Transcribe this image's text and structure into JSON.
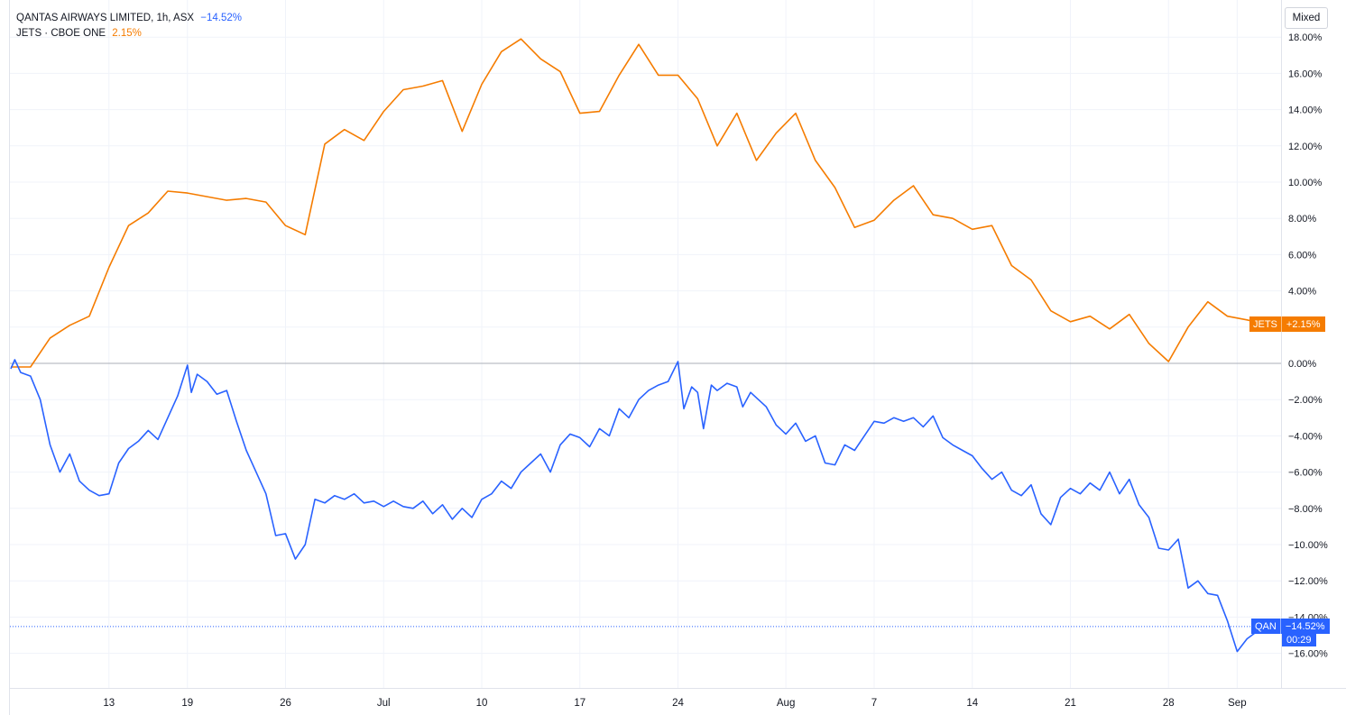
{
  "legend": {
    "qan_title": "QANTAS AIRWAYS LIMITED, 1h, ASX",
    "qan_change": "−14.52%",
    "jets_title": "JETS · CBOE ONE",
    "jets_change": "2.15%"
  },
  "toolbar": {
    "mixed_label": "Mixed"
  },
  "tags": {
    "jets_symbol": "JETS",
    "jets_value": "+2.15%",
    "qan_symbol": "QAN",
    "qan_value": "−14.52%",
    "qan_countdown": "00:29"
  },
  "colors": {
    "qan": "#2962ff",
    "jets": "#f57c00",
    "grid": "#f0f3fa",
    "axis_text": "#131722",
    "zero_line": "#9598a1"
  },
  "chart_data": {
    "type": "line",
    "ylim": [
      -17.5,
      18.5
    ],
    "y_ticks": [
      18,
      16,
      14,
      12,
      10,
      8,
      6,
      4,
      2,
      0,
      -2,
      -4,
      -6,
      -8,
      -10,
      -12,
      -14,
      -16
    ],
    "y_tick_labels": [
      "18.00%",
      "16.00%",
      "14.00%",
      "12.00%",
      "10.00%",
      "8.00%",
      "6.00%",
      "4.00%",
      "2.00%",
      "0.00%",
      "−2.00%",
      "−4.00%",
      "−6.00%",
      "−8.00%",
      "−10.00%",
      "−12.00%",
      "−14.00%",
      "−16.00%"
    ],
    "x_tick_labels": [
      {
        "label": "13",
        "t": 5
      },
      {
        "label": "19",
        "t": 9
      },
      {
        "label": "26",
        "t": 14
      },
      {
        "label": "Jul",
        "t": 19
      },
      {
        "label": "10",
        "t": 24
      },
      {
        "label": "17",
        "t": 29
      },
      {
        "label": "24",
        "t": 34
      },
      {
        "label": "Aug",
        "t": 39.5
      },
      {
        "label": "7",
        "t": 44
      },
      {
        "label": "14",
        "t": 49
      },
      {
        "label": "21",
        "t": 54
      },
      {
        "label": "28",
        "t": 59
      },
      {
        "label": "Sep",
        "t": 62.5
      }
    ],
    "t_range": [
      0,
      65.3
    ],
    "series": [
      {
        "name": "JETS",
        "color": "#f57c00",
        "points": [
          [
            0,
            -0.2
          ],
          [
            1,
            -0.2
          ],
          [
            2,
            1.4
          ],
          [
            3,
            2.1
          ],
          [
            4,
            2.6
          ],
          [
            5,
            5.3
          ],
          [
            6,
            7.6
          ],
          [
            7,
            8.3
          ],
          [
            8,
            9.5
          ],
          [
            9,
            9.4
          ],
          [
            10,
            9.2
          ],
          [
            11,
            9.0
          ],
          [
            12,
            9.1
          ],
          [
            13,
            8.9
          ],
          [
            14,
            7.6
          ],
          [
            15,
            7.1
          ],
          [
            16,
            12.1
          ],
          [
            17,
            12.9
          ],
          [
            18,
            12.3
          ],
          [
            19,
            13.9
          ],
          [
            20,
            15.1
          ],
          [
            21,
            15.3
          ],
          [
            22,
            15.6
          ],
          [
            23,
            12.8
          ],
          [
            24,
            15.4
          ],
          [
            25,
            17.2
          ],
          [
            26,
            17.9
          ],
          [
            27,
            16.8
          ],
          [
            28,
            16.1
          ],
          [
            29,
            13.8
          ],
          [
            30,
            13.9
          ],
          [
            31,
            15.9
          ],
          [
            32,
            17.6
          ],
          [
            33,
            15.9
          ],
          [
            34,
            15.9
          ],
          [
            35,
            14.6
          ],
          [
            36,
            12.0
          ],
          [
            37,
            13.8
          ],
          [
            38,
            11.2
          ],
          [
            39,
            12.7
          ],
          [
            40,
            13.8
          ],
          [
            41,
            11.2
          ],
          [
            42,
            9.7
          ],
          [
            43,
            7.5
          ],
          [
            44,
            7.9
          ],
          [
            45,
            9.0
          ],
          [
            46,
            9.8
          ],
          [
            47,
            8.2
          ],
          [
            48,
            8.0
          ],
          [
            49,
            7.4
          ],
          [
            50,
            7.6
          ],
          [
            51,
            5.4
          ],
          [
            52,
            4.6
          ],
          [
            53,
            2.9
          ],
          [
            54,
            2.3
          ],
          [
            55,
            2.6
          ],
          [
            56,
            1.9
          ],
          [
            57,
            2.7
          ],
          [
            58,
            1.1
          ],
          [
            59,
            0.1
          ],
          [
            60,
            2.0
          ],
          [
            61,
            3.4
          ],
          [
            62,
            2.6
          ],
          [
            63,
            2.4
          ],
          [
            64,
            2.15
          ]
        ],
        "last": 2.15
      },
      {
        "name": "QAN",
        "color": "#2962ff",
        "points": [
          [
            0,
            -0.3
          ],
          [
            0.2,
            0.2
          ],
          [
            0.5,
            -0.5
          ],
          [
            1,
            -0.7
          ],
          [
            1.5,
            -2.0
          ],
          [
            2,
            -4.5
          ],
          [
            2.5,
            -6.0
          ],
          [
            3,
            -5.0
          ],
          [
            3.5,
            -6.5
          ],
          [
            4,
            -7.0
          ],
          [
            4.5,
            -7.3
          ],
          [
            5,
            -7.2
          ],
          [
            5.5,
            -5.5
          ],
          [
            6,
            -4.7
          ],
          [
            6.5,
            -4.3
          ],
          [
            7,
            -3.7
          ],
          [
            7.5,
            -4.2
          ],
          [
            8,
            -3.0
          ],
          [
            8.5,
            -1.8
          ],
          [
            9,
            -0.1
          ],
          [
            9.2,
            -1.6
          ],
          [
            9.5,
            -0.6
          ],
          [
            10,
            -1.0
          ],
          [
            10.5,
            -1.7
          ],
          [
            11,
            -1.5
          ],
          [
            11.5,
            -3.2
          ],
          [
            12,
            -4.8
          ],
          [
            12.5,
            -6.0
          ],
          [
            13,
            -7.2
          ],
          [
            13.5,
            -9.5
          ],
          [
            14,
            -9.4
          ],
          [
            14.5,
            -10.8
          ],
          [
            15,
            -10.0
          ],
          [
            15.5,
            -7.5
          ],
          [
            16,
            -7.7
          ],
          [
            16.5,
            -7.3
          ],
          [
            17,
            -7.5
          ],
          [
            17.5,
            -7.2
          ],
          [
            18,
            -7.7
          ],
          [
            18.5,
            -7.6
          ],
          [
            19,
            -7.9
          ],
          [
            19.5,
            -7.6
          ],
          [
            20,
            -7.9
          ],
          [
            20.5,
            -8.0
          ],
          [
            21,
            -7.6
          ],
          [
            21.5,
            -8.3
          ],
          [
            22,
            -7.8
          ],
          [
            22.5,
            -8.6
          ],
          [
            23,
            -8.0
          ],
          [
            23.5,
            -8.5
          ],
          [
            24,
            -7.5
          ],
          [
            24.5,
            -7.2
          ],
          [
            25,
            -6.5
          ],
          [
            25.5,
            -6.9
          ],
          [
            26,
            -6.0
          ],
          [
            26.5,
            -5.5
          ],
          [
            27,
            -5.0
          ],
          [
            27.5,
            -6.0
          ],
          [
            28,
            -4.5
          ],
          [
            28.5,
            -3.9
          ],
          [
            29,
            -4.1
          ],
          [
            29.5,
            -4.6
          ],
          [
            30,
            -3.6
          ],
          [
            30.5,
            -4.0
          ],
          [
            31,
            -2.5
          ],
          [
            31.5,
            -3.0
          ],
          [
            32,
            -2.0
          ],
          [
            32.5,
            -1.5
          ],
          [
            33,
            -1.2
          ],
          [
            33.5,
            -1.0
          ],
          [
            34,
            0.1
          ],
          [
            34.3,
            -2.5
          ],
          [
            34.7,
            -1.3
          ],
          [
            35,
            -1.6
          ],
          [
            35.3,
            -3.6
          ],
          [
            35.7,
            -1.2
          ],
          [
            36,
            -1.5
          ],
          [
            36.5,
            -1.1
          ],
          [
            37,
            -1.3
          ],
          [
            37.3,
            -2.4
          ],
          [
            37.7,
            -1.6
          ],
          [
            38,
            -1.9
          ],
          [
            38.5,
            -2.4
          ],
          [
            39,
            -3.4
          ],
          [
            39.5,
            -3.9
          ],
          [
            40,
            -3.3
          ],
          [
            40.5,
            -4.3
          ],
          [
            41,
            -4.0
          ],
          [
            41.5,
            -5.5
          ],
          [
            42,
            -5.6
          ],
          [
            42.5,
            -4.5
          ],
          [
            43,
            -4.8
          ],
          [
            43.5,
            -4.0
          ],
          [
            44,
            -3.2
          ],
          [
            44.5,
            -3.3
          ],
          [
            45,
            -3.0
          ],
          [
            45.5,
            -3.2
          ],
          [
            46,
            -3.0
          ],
          [
            46.5,
            -3.5
          ],
          [
            47,
            -2.9
          ],
          [
            47.5,
            -4.1
          ],
          [
            48,
            -4.5
          ],
          [
            48.5,
            -4.8
          ],
          [
            49,
            -5.1
          ],
          [
            49.5,
            -5.8
          ],
          [
            50,
            -6.4
          ],
          [
            50.5,
            -6.0
          ],
          [
            51,
            -7.0
          ],
          [
            51.5,
            -7.3
          ],
          [
            52,
            -6.7
          ],
          [
            52.5,
            -8.3
          ],
          [
            53,
            -8.9
          ],
          [
            53.5,
            -7.4
          ],
          [
            54,
            -6.9
          ],
          [
            54.5,
            -7.2
          ],
          [
            55,
            -6.6
          ],
          [
            55.5,
            -7.0
          ],
          [
            56,
            -6.0
          ],
          [
            56.5,
            -7.2
          ],
          [
            57,
            -6.4
          ],
          [
            57.5,
            -7.8
          ],
          [
            58,
            -8.5
          ],
          [
            58.5,
            -10.2
          ],
          [
            59,
            -10.3
          ],
          [
            59.5,
            -9.7
          ],
          [
            60,
            -12.4
          ],
          [
            60.5,
            -12.0
          ],
          [
            61,
            -12.7
          ],
          [
            61.5,
            -12.8
          ],
          [
            62,
            -14.2
          ],
          [
            62.5,
            -15.9
          ],
          [
            63,
            -15.2
          ],
          [
            63.5,
            -14.8
          ],
          [
            64,
            -14.52
          ]
        ],
        "last": -14.52
      }
    ]
  }
}
